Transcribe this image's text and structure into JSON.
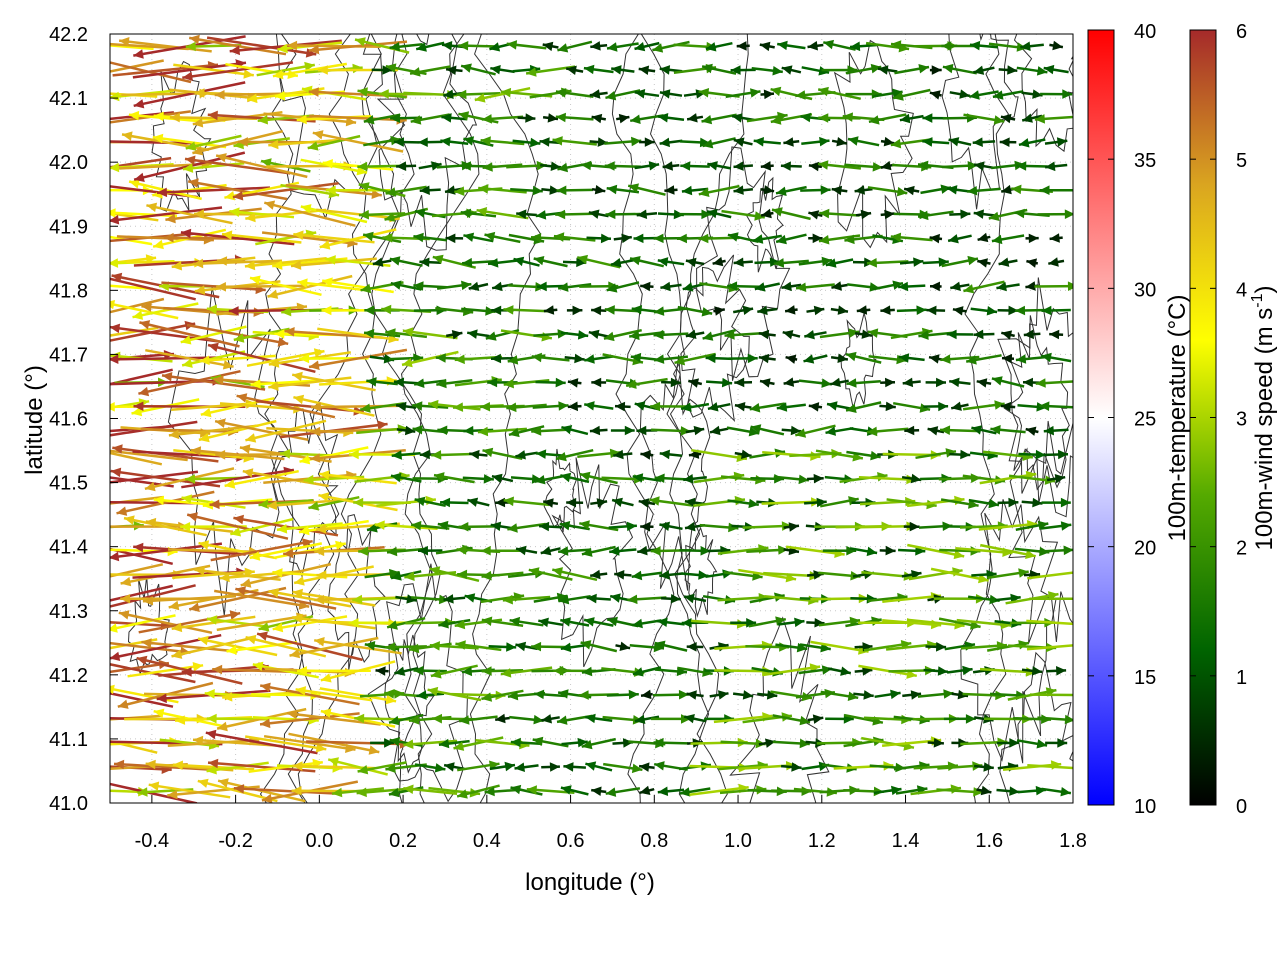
{
  "chart_data": {
    "type": "vector-field",
    "xlabel": "longitude (°)",
    "ylabel": "latitude (°)",
    "xlim": [
      -0.5,
      1.8
    ],
    "ylim": [
      41.0,
      42.2
    ],
    "xticks": [
      "-0.4",
      "-0.2",
      "0.0",
      "0.2",
      "0.4",
      "0.6",
      "0.8",
      "1.0",
      "1.2",
      "1.4",
      "1.6",
      "1.8"
    ],
    "xtick_values": [
      -0.4,
      -0.2,
      0.0,
      0.2,
      0.4,
      0.6,
      0.8,
      1.0,
      1.2,
      1.4,
      1.6,
      1.8
    ],
    "yticks": [
      "41.0",
      "41.1",
      "41.2",
      "41.3",
      "41.4",
      "41.5",
      "41.6",
      "41.7",
      "41.8",
      "41.9",
      "42.0",
      "42.1",
      "42.2"
    ],
    "ytick_values": [
      41.0,
      41.1,
      41.2,
      41.3,
      41.4,
      41.5,
      41.6,
      41.7,
      41.8,
      41.9,
      42.0,
      42.1,
      42.2
    ],
    "grid": true,
    "vector_description": "100m wind vectors, easterly (westward) in the north/west part, westerly (eastward) in the south-east part, colored by wind speed",
    "temperature_colorbar": {
      "label": "100m-temperature (°C)",
      "range": [
        10,
        40
      ],
      "ticks": [
        "10",
        "15",
        "20",
        "25",
        "30",
        "35",
        "40"
      ],
      "tick_values": [
        10,
        15,
        20,
        25,
        30,
        35,
        40
      ],
      "colors": [
        "#0000ff",
        "#ffffff",
        "#ff0000"
      ]
    },
    "wind_colorbar": {
      "label_main": "100m-wind speed (m s",
      "label_sup": "-1",
      "label_end": ")",
      "range": [
        0,
        6
      ],
      "ticks": [
        "0",
        "1",
        "2",
        "3",
        "4",
        "5",
        "6"
      ],
      "tick_values": [
        0,
        1,
        2,
        3,
        4,
        5,
        6
      ],
      "colors": [
        "#000000",
        "#006400",
        "#55aa00",
        "#ffff00",
        "#daa520",
        "#a52a2a"
      ]
    }
  }
}
